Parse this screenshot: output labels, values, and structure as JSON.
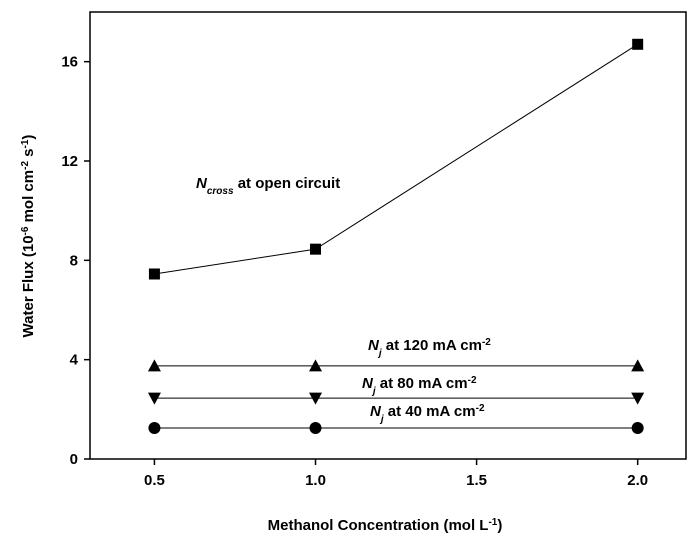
{
  "chart_data": {
    "type": "line",
    "x_label": [
      {
        "text": "Methanol Concentration (mol L"
      },
      {
        "text": "-1",
        "script": "sup"
      },
      {
        "text": ")"
      }
    ],
    "y_label": [
      {
        "text": "Water Flux (10"
      },
      {
        "text": "-6",
        "script": "sup"
      },
      {
        "text": " mol cm"
      },
      {
        "text": "-2",
        "script": "sup"
      },
      {
        "text": " s"
      },
      {
        "text": "-1",
        "script": "sup"
      },
      {
        "text": ")"
      }
    ],
    "x": [
      0.5,
      1.0,
      2.0
    ],
    "xlim": [
      0.3,
      2.15
    ],
    "xticks": [
      0.5,
      {
        "value": 1.0,
        "label": "1.0"
      },
      1.5,
      {
        "value": 2.0,
        "label": "2.0"
      }
    ],
    "ylim": [
      0,
      18
    ],
    "yticks": [
      0,
      4,
      8,
      12,
      16
    ],
    "series": [
      {
        "label": [
          {
            "text": "N",
            "style": "italic"
          },
          {
            "text": "cross",
            "script": "sub",
            "style": "italic"
          },
          {
            "text": " at open circuit"
          }
        ],
        "marker": "square",
        "color": "#000000",
        "values": [
          7.45,
          8.45,
          16.7
        ]
      },
      {
        "label": [
          {
            "text": "N",
            "style": "italic"
          },
          {
            "text": "j",
            "script": "sub",
            "style": "italic"
          },
          {
            "text": "  at 120 mA cm"
          },
          {
            "text": "-2",
            "script": "sup"
          }
        ],
        "marker": "triangle-up",
        "color": "#000000",
        "values": [
          3.75,
          3.75,
          3.75
        ]
      },
      {
        "label": [
          {
            "text": "N",
            "style": "italic"
          },
          {
            "text": "j",
            "script": "sub",
            "style": "italic"
          },
          {
            "text": "  at 80 mA cm"
          },
          {
            "text": "-2",
            "script": "sup"
          }
        ],
        "marker": "triangle-down",
        "color": "#000000",
        "values": [
          2.45,
          2.45,
          2.45
        ]
      },
      {
        "label": [
          {
            "text": "N",
            "style": "italic"
          },
          {
            "text": "j",
            "script": "sub",
            "style": "italic"
          },
          {
            "text": "  at 40 mA cm"
          },
          {
            "text": "-2",
            "script": "sup"
          }
        ],
        "marker": "circle",
        "color": "#000000",
        "values": [
          1.25,
          1.25,
          1.25
        ]
      }
    ]
  }
}
